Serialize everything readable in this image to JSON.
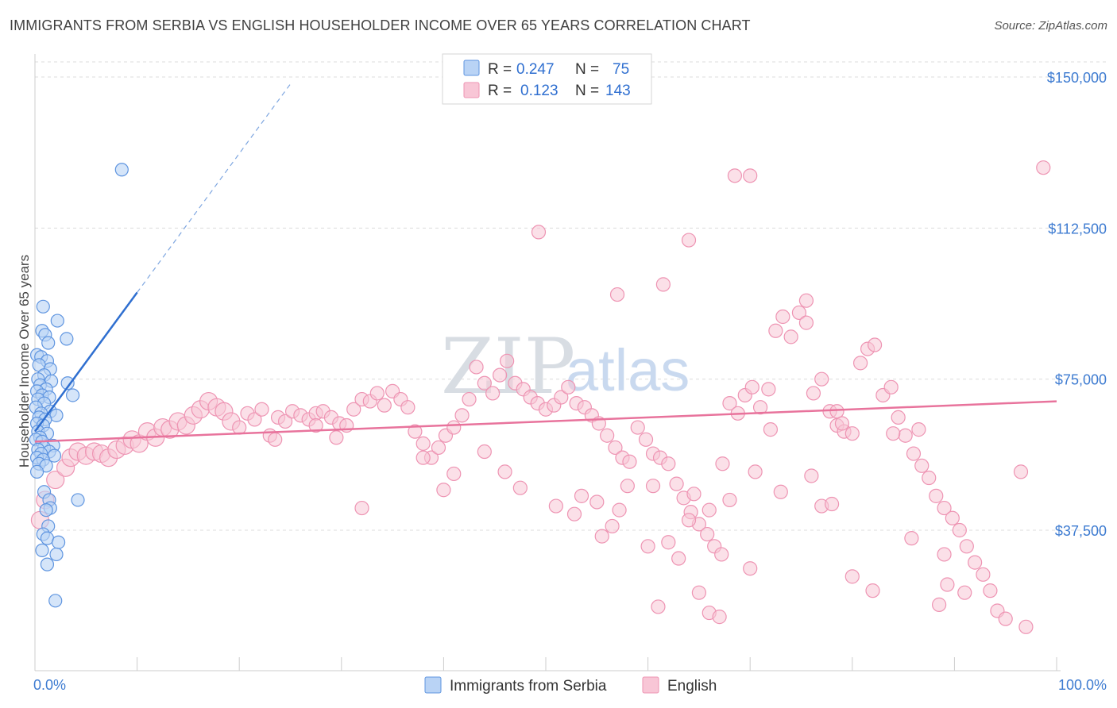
{
  "title": "IMMIGRANTS FROM SERBIA VS ENGLISH HOUSEHOLDER INCOME OVER 65 YEARS CORRELATION CHART",
  "source": "Source: ZipAtlas.com",
  "watermark": {
    "zip": "ZIP",
    "atlas": "atlas"
  },
  "colors": {
    "serbia_fill": "#b9d3f5",
    "serbia_stroke": "#5f95e0",
    "serbia_line": "#2f6fd0",
    "english_fill": "#f8c6d6",
    "english_stroke": "#ee94b3",
    "english_line": "#e8739c",
    "axis_text": "#3d7bd1",
    "grid": "#dcdcdc"
  },
  "legend": {
    "rows": [
      {
        "r_label": "R =",
        "r_value": "0.247",
        "n_label": "N =",
        "n_value": "75"
      },
      {
        "r_label": "R =",
        "r_value": "0.123",
        "n_label": "N =",
        "n_value": "143"
      }
    ]
  },
  "chart_data": {
    "type": "scatter",
    "title": "IMMIGRANTS FROM SERBIA VS ENGLISH HOUSEHOLDER INCOME OVER 65 YEARS CORRELATION CHART",
    "xlabel": "",
    "ylabel": "Householder Income Over 65 years",
    "xlim": [
      0,
      100
    ],
    "ylim": [
      0,
      155000
    ],
    "x_tick_labels": [
      "0.0%",
      "100.0%"
    ],
    "y_ticks": [
      37500,
      75000,
      112500,
      150000
    ],
    "y_tick_labels": [
      "$37,500",
      "$75,000",
      "$112,500",
      "$150,000"
    ],
    "grid": true,
    "legend_position": "top-center",
    "series": [
      {
        "name": "Immigrants from Serbia",
        "trendline": {
          "x0": 0,
          "y0": 62000,
          "x1": 10,
          "y1": 96500,
          "dashed_to_x": 25
        },
        "points": [
          [
            8.5,
            127000
          ],
          [
            0.8,
            93000
          ],
          [
            2.2,
            89500
          ],
          [
            0.7,
            87000
          ],
          [
            1.0,
            86000
          ],
          [
            3.1,
            85000
          ],
          [
            1.3,
            84000
          ],
          [
            0.2,
            81000
          ],
          [
            0.6,
            80500
          ],
          [
            1.2,
            79500
          ],
          [
            0.4,
            78500
          ],
          [
            1.5,
            77500
          ],
          [
            0.9,
            76000
          ],
          [
            0.3,
            75000
          ],
          [
            1.6,
            74500
          ],
          [
            3.2,
            74000
          ],
          [
            0.5,
            73500
          ],
          [
            1.1,
            72500
          ],
          [
            0.2,
            72000
          ],
          [
            0.7,
            71000
          ],
          [
            3.7,
            71000
          ],
          [
            1.4,
            70500
          ],
          [
            0.3,
            70000
          ],
          [
            0.9,
            69000
          ],
          [
            0.1,
            68000
          ],
          [
            1.5,
            67000
          ],
          [
            0.6,
            66500
          ],
          [
            2.1,
            66000
          ],
          [
            0.4,
            65500
          ],
          [
            1.0,
            65000
          ],
          [
            0.2,
            64000
          ],
          [
            0.8,
            63500
          ],
          [
            0.3,
            62000
          ],
          [
            1.2,
            61500
          ],
          [
            0.5,
            60500
          ],
          [
            0.1,
            60000
          ],
          [
            0.7,
            59500
          ],
          [
            1.8,
            58500
          ],
          [
            0.9,
            58000
          ],
          [
            0.3,
            57500
          ],
          [
            1.4,
            57000
          ],
          [
            0.6,
            56500
          ],
          [
            1.9,
            56000
          ],
          [
            0.2,
            55500
          ],
          [
            0.8,
            55000
          ],
          [
            0.4,
            54000
          ],
          [
            1.1,
            53500
          ],
          [
            0.2,
            52000
          ],
          [
            0.9,
            47000
          ],
          [
            1.4,
            45000
          ],
          [
            4.2,
            45000
          ],
          [
            1.5,
            43000
          ],
          [
            1.1,
            42500
          ],
          [
            1.3,
            38500
          ],
          [
            0.8,
            36500
          ],
          [
            1.2,
            35500
          ],
          [
            2.3,
            34500
          ],
          [
            0.7,
            32500
          ],
          [
            2.1,
            31500
          ],
          [
            1.2,
            29000
          ],
          [
            2.0,
            20000
          ]
        ]
      },
      {
        "name": "English",
        "trendline": {
          "x0": 0,
          "y0": 59500,
          "x1": 100,
          "y1": 69500
        },
        "points": [
          [
            0.5,
            40000
          ],
          [
            1.0,
            45000
          ],
          [
            2.0,
            50000
          ],
          [
            3.0,
            53000
          ],
          [
            3.5,
            55500
          ],
          [
            4.2,
            57000
          ],
          [
            5.0,
            56000
          ],
          [
            5.8,
            57000
          ],
          [
            6.5,
            56500
          ],
          [
            7.2,
            55500
          ],
          [
            8.0,
            57500
          ],
          [
            8.8,
            58500
          ],
          [
            9.5,
            60000
          ],
          [
            10.2,
            59000
          ],
          [
            11.0,
            62000
          ],
          [
            11.8,
            60500
          ],
          [
            12.5,
            63000
          ],
          [
            13.2,
            62500
          ],
          [
            14.0,
            64500
          ],
          [
            14.8,
            63500
          ],
          [
            15.5,
            66000
          ],
          [
            16.2,
            67500
          ],
          [
            17.0,
            69500
          ],
          [
            17.8,
            68000
          ],
          [
            18.5,
            67000
          ],
          [
            19.2,
            64500
          ],
          [
            20.0,
            63000
          ],
          [
            20.8,
            66500
          ],
          [
            21.5,
            65000
          ],
          [
            22.2,
            67500
          ],
          [
            23.0,
            61000
          ],
          [
            23.8,
            65500
          ],
          [
            24.5,
            64500
          ],
          [
            25.2,
            67000
          ],
          [
            26.0,
            66000
          ],
          [
            26.8,
            65000
          ],
          [
            27.5,
            66500
          ],
          [
            28.2,
            67000
          ],
          [
            29.0,
            65500
          ],
          [
            29.8,
            64000
          ],
          [
            30.5,
            63500
          ],
          [
            31.2,
            67500
          ],
          [
            32.0,
            70000
          ],
          [
            32.8,
            69500
          ],
          [
            33.5,
            71500
          ],
          [
            34.2,
            68500
          ],
          [
            35.0,
            72000
          ],
          [
            35.8,
            70000
          ],
          [
            36.5,
            68000
          ],
          [
            37.2,
            62000
          ],
          [
            38.0,
            59000
          ],
          [
            38.8,
            55500
          ],
          [
            39.5,
            58000
          ],
          [
            40.2,
            61000
          ],
          [
            41.0,
            63000
          ],
          [
            41.8,
            66000
          ],
          [
            42.5,
            70000
          ],
          [
            43.2,
            78000
          ],
          [
            44.0,
            74000
          ],
          [
            44.8,
            71500
          ],
          [
            45.5,
            76000
          ],
          [
            46.2,
            79500
          ],
          [
            47.0,
            74000
          ],
          [
            47.8,
            72500
          ],
          [
            48.5,
            70500
          ],
          [
            49.2,
            69000
          ],
          [
            50.0,
            67500
          ],
          [
            50.8,
            68500
          ],
          [
            51.5,
            70500
          ],
          [
            52.2,
            73000
          ],
          [
            53.0,
            69000
          ],
          [
            53.8,
            68000
          ],
          [
            54.5,
            66000
          ],
          [
            55.2,
            64000
          ],
          [
            56.0,
            61000
          ],
          [
            56.8,
            58000
          ],
          [
            57.5,
            55500
          ],
          [
            58.2,
            54500
          ],
          [
            59.0,
            63000
          ],
          [
            59.8,
            60000
          ],
          [
            60.5,
            56500
          ],
          [
            61.2,
            55500
          ],
          [
            62.0,
            54000
          ],
          [
            62.8,
            49000
          ],
          [
            63.5,
            45500
          ],
          [
            64.2,
            42000
          ],
          [
            65.0,
            39000
          ],
          [
            65.8,
            36500
          ],
          [
            66.5,
            33500
          ],
          [
            67.2,
            31500
          ],
          [
            68.0,
            69000
          ],
          [
            68.8,
            66500
          ],
          [
            69.5,
            71000
          ],
          [
            70.2,
            73000
          ],
          [
            71.0,
            68000
          ],
          [
            71.8,
            72500
          ],
          [
            72.5,
            87000
          ],
          [
            73.2,
            90500
          ],
          [
            74.0,
            85500
          ],
          [
            74.8,
            91500
          ],
          [
            75.5,
            89000
          ],
          [
            76.2,
            71500
          ],
          [
            77.0,
            75000
          ],
          [
            77.8,
            67000
          ],
          [
            78.5,
            63500
          ],
          [
            79.2,
            62000
          ],
          [
            80.0,
            61500
          ],
          [
            80.8,
            79000
          ],
          [
            81.5,
            82500
          ],
          [
            82.2,
            83500
          ],
          [
            83.0,
            71000
          ],
          [
            83.8,
            73000
          ],
          [
            84.5,
            65500
          ],
          [
            85.2,
            61000
          ],
          [
            86.0,
            56500
          ],
          [
            86.8,
            53500
          ],
          [
            87.5,
            50500
          ],
          [
            88.2,
            46000
          ],
          [
            89.0,
            43000
          ],
          [
            89.8,
            40500
          ],
          [
            90.5,
            37500
          ],
          [
            91.2,
            33500
          ],
          [
            92.0,
            29500
          ],
          [
            92.8,
            26500
          ],
          [
            93.5,
            22500
          ],
          [
            94.2,
            17500
          ],
          [
            49.3,
            111500
          ],
          [
            64.0,
            109500
          ],
          [
            68.5,
            125500
          ],
          [
            70.0,
            125500
          ],
          [
            98.7,
            127500
          ],
          [
            75.5,
            94500
          ],
          [
            61.5,
            98500
          ],
          [
            57.0,
            96000
          ],
          [
            32.0,
            43000
          ],
          [
            40.0,
            47500
          ],
          [
            57.2,
            42500
          ],
          [
            96.5,
            52000
          ],
          [
            52.8,
            41500
          ],
          [
            56.5,
            38500
          ],
          [
            55.5,
            36000
          ],
          [
            60.5,
            48500
          ],
          [
            64.5,
            46500
          ],
          [
            67.3,
            54000
          ],
          [
            72.0,
            62500
          ],
          [
            78.5,
            67000
          ],
          [
            79.0,
            64000
          ],
          [
            85.8,
            35500
          ],
          [
            89.0,
            31500
          ],
          [
            91.0,
            22000
          ],
          [
            88.5,
            19000
          ],
          [
            89.3,
            24000
          ],
          [
            95.0,
            15500
          ],
          [
            97.0,
            13500
          ],
          [
            23.5,
            60000
          ],
          [
            27.5,
            63500
          ],
          [
            29.5,
            60500
          ],
          [
            41.0,
            51500
          ],
          [
            38.0,
            55500
          ],
          [
            44.0,
            57000
          ],
          [
            46.0,
            52000
          ],
          [
            47.5,
            48000
          ],
          [
            51.0,
            43500
          ],
          [
            53.5,
            46000
          ],
          [
            55.0,
            44500
          ],
          [
            58.0,
            48500
          ],
          [
            60.0,
            33500
          ],
          [
            62.0,
            34500
          ],
          [
            63.0,
            30500
          ],
          [
            61.0,
            18500
          ],
          [
            65.0,
            22000
          ],
          [
            66.0,
            17000
          ],
          [
            67.0,
            16000
          ],
          [
            70.0,
            28000
          ],
          [
            77.0,
            43500
          ],
          [
            80.0,
            26000
          ],
          [
            82.0,
            22500
          ],
          [
            84.0,
            61500
          ],
          [
            86.5,
            62500
          ],
          [
            78.0,
            44000
          ],
          [
            76.0,
            51000
          ],
          [
            73.0,
            47000
          ],
          [
            70.5,
            52000
          ],
          [
            68.0,
            45000
          ],
          [
            66.0,
            42500
          ],
          [
            64.0,
            40000
          ]
        ]
      }
    ]
  },
  "bottom_legend": {
    "items": [
      {
        "label": "Immigrants from Serbia"
      },
      {
        "label": "English"
      }
    ]
  }
}
